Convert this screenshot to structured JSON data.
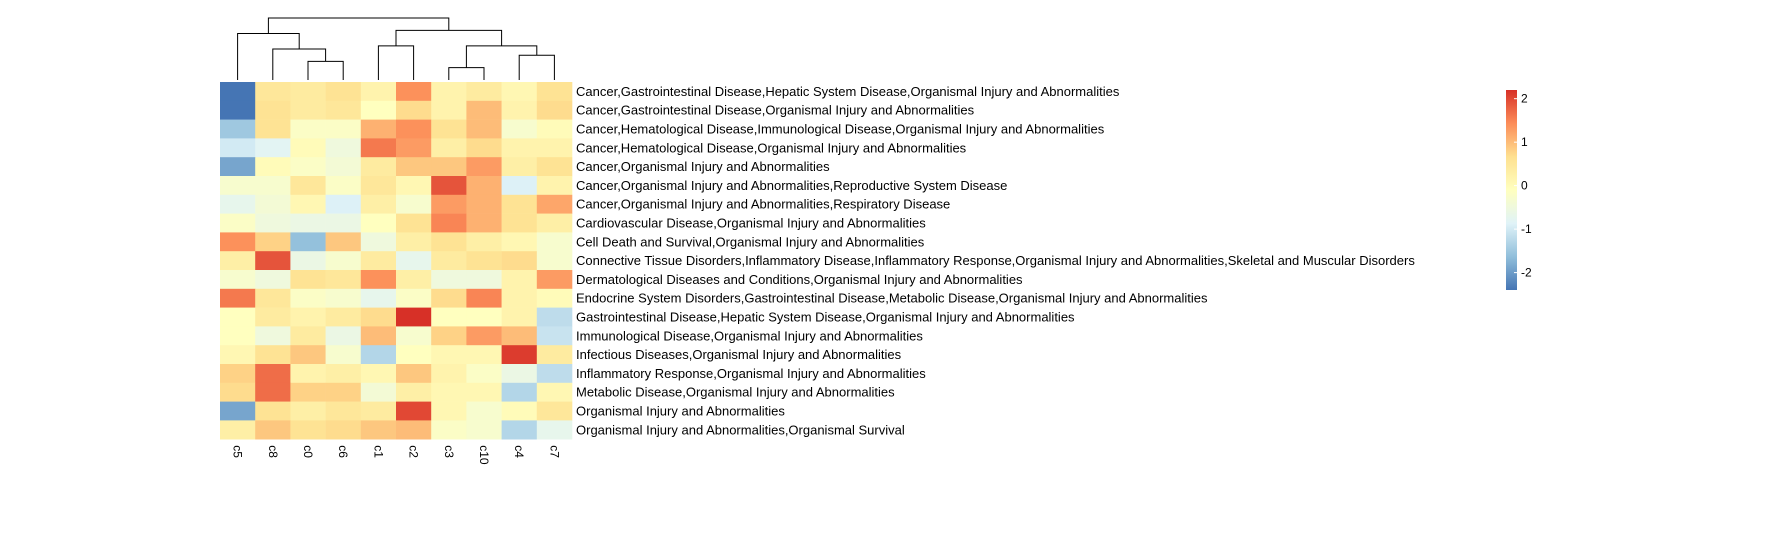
{
  "chart_data": {
    "type": "heatmap",
    "columns": [
      "c5",
      "c8",
      "c0",
      "c6",
      "c1",
      "c2",
      "c3",
      "c10",
      "c4",
      "c7"
    ],
    "rows": [
      "Cancer,Gastrointestinal Disease,Hepatic System Disease,Organismal Injury and Abnormalities",
      "Cancer,Gastrointestinal Disease,Organismal Injury and Abnormalities",
      "Cancer,Hematological Disease,Immunological Disease,Organismal Injury and Abnormalities",
      "Cancer,Hematological Disease,Organismal Injury and Abnormalities",
      "Cancer,Organismal Injury and Abnormalities",
      "Cancer,Organismal Injury and Abnormalities,Reproductive System Disease",
      "Cancer,Organismal Injury and Abnormalities,Respiratory Disease",
      "Cardiovascular Disease,Organismal Injury and Abnormalities",
      "Cell Death and Survival,Organismal Injury and Abnormalities",
      "Connective Tissue Disorders,Inflammatory Disease,Inflammatory Response,Organismal Injury and Abnormalities,Skeletal and Muscular Disorders",
      "Dermatological Diseases and Conditions,Organismal Injury and Abnormalities",
      "Endocrine System Disorders,Gastrointestinal Disease,Metabolic Disease,Organismal Injury and Abnormalities",
      "Gastrointestinal Disease,Hepatic System Disease,Organismal Injury and Abnormalities",
      "Immunological Disease,Organismal Injury and Abnormalities",
      "Infectious Diseases,Organismal Injury and Abnormalities",
      "Inflammatory Response,Organismal Injury and Abnormalities",
      "Metabolic Disease,Organismal Injury and Abnormalities",
      "Organismal Injury and Abnormalities",
      "Organismal Injury and Abnormalities,Organismal Survival"
    ],
    "values": [
      [
        -2.4,
        0.5,
        0.4,
        0.6,
        0.2,
        1.4,
        0.2,
        0.4,
        0.1,
        0.6
      ],
      [
        -2.4,
        0.6,
        0.4,
        0.5,
        -0.1,
        0.7,
        0.2,
        1.0,
        0.2,
        0.7
      ],
      [
        -1.5,
        0.6,
        -0.2,
        -0.2,
        1.1,
        1.4,
        0.6,
        1.0,
        -0.3,
        0.0
      ],
      [
        -1.0,
        -0.8,
        0.0,
        -0.5,
        1.6,
        1.3,
        0.3,
        0.7,
        0.2,
        0.2
      ],
      [
        -1.9,
        0.0,
        -0.2,
        -0.4,
        0.4,
        0.9,
        0.9,
        1.3,
        0.3,
        0.6
      ],
      [
        -0.3,
        -0.3,
        0.5,
        -0.2,
        0.5,
        0.1,
        1.9,
        1.1,
        -0.9,
        0.2
      ],
      [
        -0.7,
        -0.4,
        0.1,
        -0.9,
        0.3,
        -0.3,
        1.3,
        1.1,
        0.6,
        1.2
      ],
      [
        -0.2,
        -0.5,
        -0.6,
        -0.6,
        -0.1,
        0.6,
        1.5,
        1.1,
        0.6,
        0.3
      ],
      [
        1.4,
        0.8,
        -1.6,
        0.9,
        -0.5,
        0.3,
        0.6,
        0.3,
        0.1,
        -0.3
      ],
      [
        0.3,
        1.9,
        -0.6,
        -0.3,
        0.4,
        -0.7,
        0.4,
        0.6,
        0.7,
        -0.3
      ],
      [
        -0.3,
        -0.5,
        0.6,
        0.5,
        1.4,
        0.3,
        -0.5,
        -0.5,
        0.2,
        1.3
      ],
      [
        1.6,
        0.5,
        -0.2,
        -0.3,
        -0.7,
        -0.2,
        0.7,
        1.5,
        0.2,
        0.0
      ],
      [
        -0.1,
        0.4,
        0.2,
        0.4,
        0.7,
        2.2,
        -0.1,
        -0.1,
        0.2,
        -1.2
      ],
      [
        -0.1,
        -0.5,
        0.4,
        -0.6,
        1.0,
        -0.3,
        0.8,
        1.3,
        1.0,
        -1.1
      ],
      [
        0.1,
        0.6,
        0.9,
        -0.3,
        -1.3,
        -0.1,
        0.1,
        0.1,
        2.1,
        0.4
      ],
      [
        0.8,
        1.7,
        0.2,
        0.3,
        0.1,
        0.9,
        0.2,
        -0.2,
        -0.6,
        -1.2
      ],
      [
        0.7,
        1.7,
        0.8,
        0.8,
        -0.4,
        0.3,
        0.1,
        0.1,
        -1.3,
        0.1
      ],
      [
        -1.9,
        0.6,
        0.3,
        0.5,
        0.4,
        2.0,
        0.1,
        -0.3,
        0.0,
        0.5
      ],
      [
        0.3,
        0.9,
        0.6,
        0.7,
        0.9,
        1.0,
        -0.2,
        -0.3,
        -1.3,
        -0.7
      ]
    ],
    "legend": {
      "ticks": [
        2,
        1,
        0,
        -1,
        -2
      ],
      "min": -2.4,
      "max": 2.2,
      "colors": [
        "#4575b4",
        "#91bfdb",
        "#e0f3f8",
        "#ffffbf",
        "#fee090",
        "#fc8d59",
        "#d73027"
      ],
      "placement": "right"
    },
    "dendrogram": {
      "note_order": "columns",
      "merges": [
        {
          "left": "c0",
          "right": "c6",
          "height": 0.3
        },
        {
          "left": "c8",
          "right": "c0+c6",
          "height": 0.5
        },
        {
          "left": "c5",
          "right": "c8+c0+c6",
          "height": 0.75
        },
        {
          "left": "c3",
          "right": "c10",
          "height": 0.2
        },
        {
          "left": "c4",
          "right": "c7",
          "height": 0.4
        },
        {
          "left": "c3+c10",
          "right": "c4+c7",
          "height": 0.55
        },
        {
          "left": "c1",
          "right": "c2",
          "height": 0.55
        },
        {
          "left": "c1+c2",
          "right": "c3+c10+c4+c7",
          "height": 0.8
        },
        {
          "left": "c5+c8+c0+c6",
          "right": "c1+c2+c3+c10+c4+c7",
          "height": 1.0
        }
      ]
    }
  }
}
